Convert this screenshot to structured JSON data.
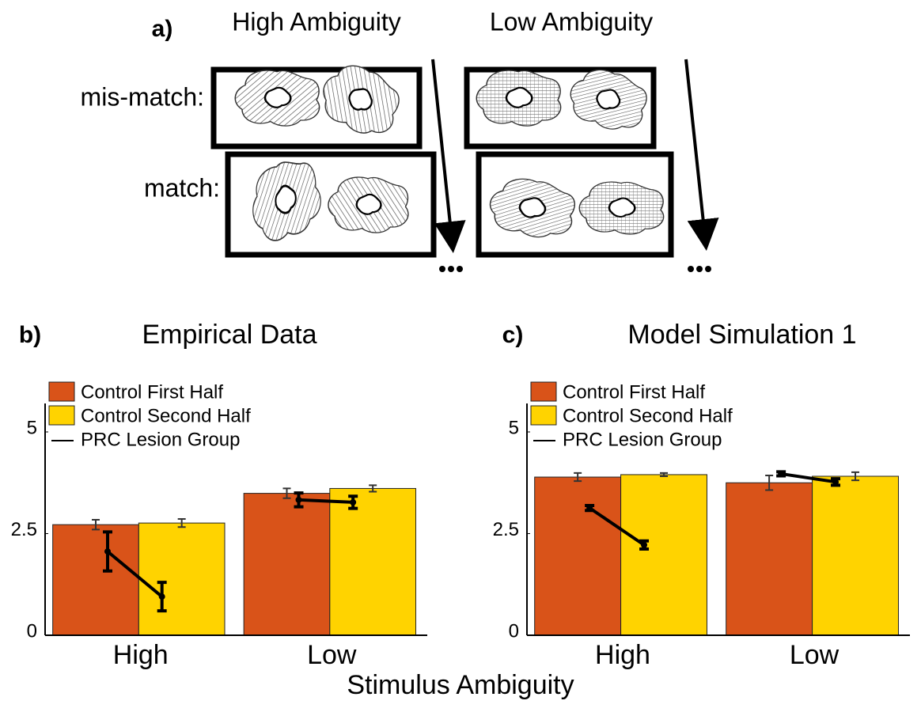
{
  "panel_a": {
    "label": "a)",
    "columns": [
      "High Ambiguity",
      "Low Ambiguity"
    ],
    "rows": [
      "mis-match:",
      "match:"
    ]
  },
  "x_label": "Stimulus Ambiguity",
  "chart_data": [
    {
      "type": "bar",
      "panel": "b)",
      "title": "Empirical Data",
      "categories": [
        "High",
        "Low"
      ],
      "ylim": [
        0,
        5.7
      ],
      "yticks": [
        0,
        2.5,
        5
      ],
      "series": [
        {
          "name": "Control First Half",
          "color": "#d95319",
          "values": [
            2.72,
            3.49
          ],
          "errors": [
            0.12,
            0.12
          ]
        },
        {
          "name": "Control Second Half",
          "color": "#ffd300",
          "values": [
            2.76,
            3.61
          ],
          "errors": [
            0.1,
            0.08
          ]
        },
        {
          "name": "PRC Lesion Group",
          "color": "#000000",
          "line": true,
          "values": [
            [
              2.06,
              0.95
            ],
            [
              3.33,
              3.27
            ]
          ],
          "errors": [
            [
              0.48,
              0.35
            ],
            [
              0.17,
              0.15
            ]
          ]
        }
      ]
    },
    {
      "type": "bar",
      "panel": "c)",
      "title": "Model Simulation 1",
      "categories": [
        "High",
        "Low"
      ],
      "ylim": [
        0,
        5.7
      ],
      "yticks": [
        0,
        2.5,
        5
      ],
      "series": [
        {
          "name": "Control First Half",
          "color": "#d95319",
          "values": [
            3.89,
            3.75
          ],
          "errors": [
            0.1,
            0.18
          ]
        },
        {
          "name": "Control Second Half",
          "color": "#ffd300",
          "values": [
            3.95,
            3.91
          ],
          "errors": [
            0.04,
            0.1
          ]
        },
        {
          "name": "PRC Lesion Group",
          "color": "#000000",
          "line": true,
          "values": [
            [
              3.13,
              2.22
            ],
            [
              3.97,
              3.77
            ]
          ],
          "errors": [
            [
              0.06,
              0.1
            ],
            [
              0.05,
              0.08
            ]
          ]
        }
      ]
    }
  ]
}
